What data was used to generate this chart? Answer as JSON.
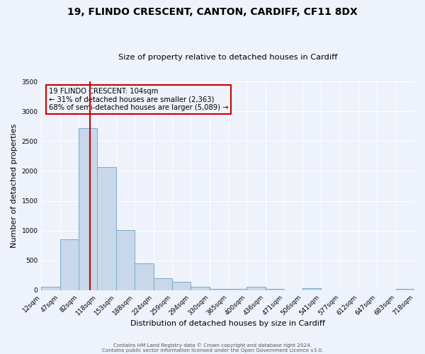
{
  "title": "19, FLINDO CRESCENT, CANTON, CARDIFF, CF11 8DX",
  "subtitle": "Size of property relative to detached houses in Cardiff",
  "xlabel": "Distribution of detached houses by size in Cardiff",
  "ylabel": "Number of detached properties",
  "footer_line1": "Contains HM Land Registry data © Crown copyright and database right 2024.",
  "footer_line2": "Contains public sector information licensed under the Open Government Licence v3.0.",
  "annotation_title": "19 FLINDO CRESCENT: 104sqm",
  "annotation_line1": "← 31% of detached houses are smaller (2,363)",
  "annotation_line2": "68% of semi-detached houses are larger (5,089) →",
  "property_size": 104,
  "red_line_x": 104,
  "bar_color": "#c8d8ea",
  "bar_edge_color": "#7aaac8",
  "red_line_color": "#cc0000",
  "annotation_box_edge_color": "#cc0000",
  "background_color": "#eef2fb",
  "grid_color": "#ffffff",
  "bin_edges": [
    12,
    47,
    82,
    118,
    153,
    188,
    224,
    259,
    294,
    330,
    365,
    400,
    436,
    471,
    506,
    541,
    577,
    612,
    647,
    683,
    718
  ],
  "bar_heights": [
    55,
    850,
    2720,
    2060,
    1010,
    455,
    205,
    140,
    55,
    25,
    20,
    65,
    20,
    5,
    40,
    5,
    5,
    5,
    5,
    25
  ],
  "ylim": [
    0,
    3500
  ],
  "yticks": [
    0,
    500,
    1000,
    1500,
    2000,
    2500,
    3000,
    3500
  ]
}
